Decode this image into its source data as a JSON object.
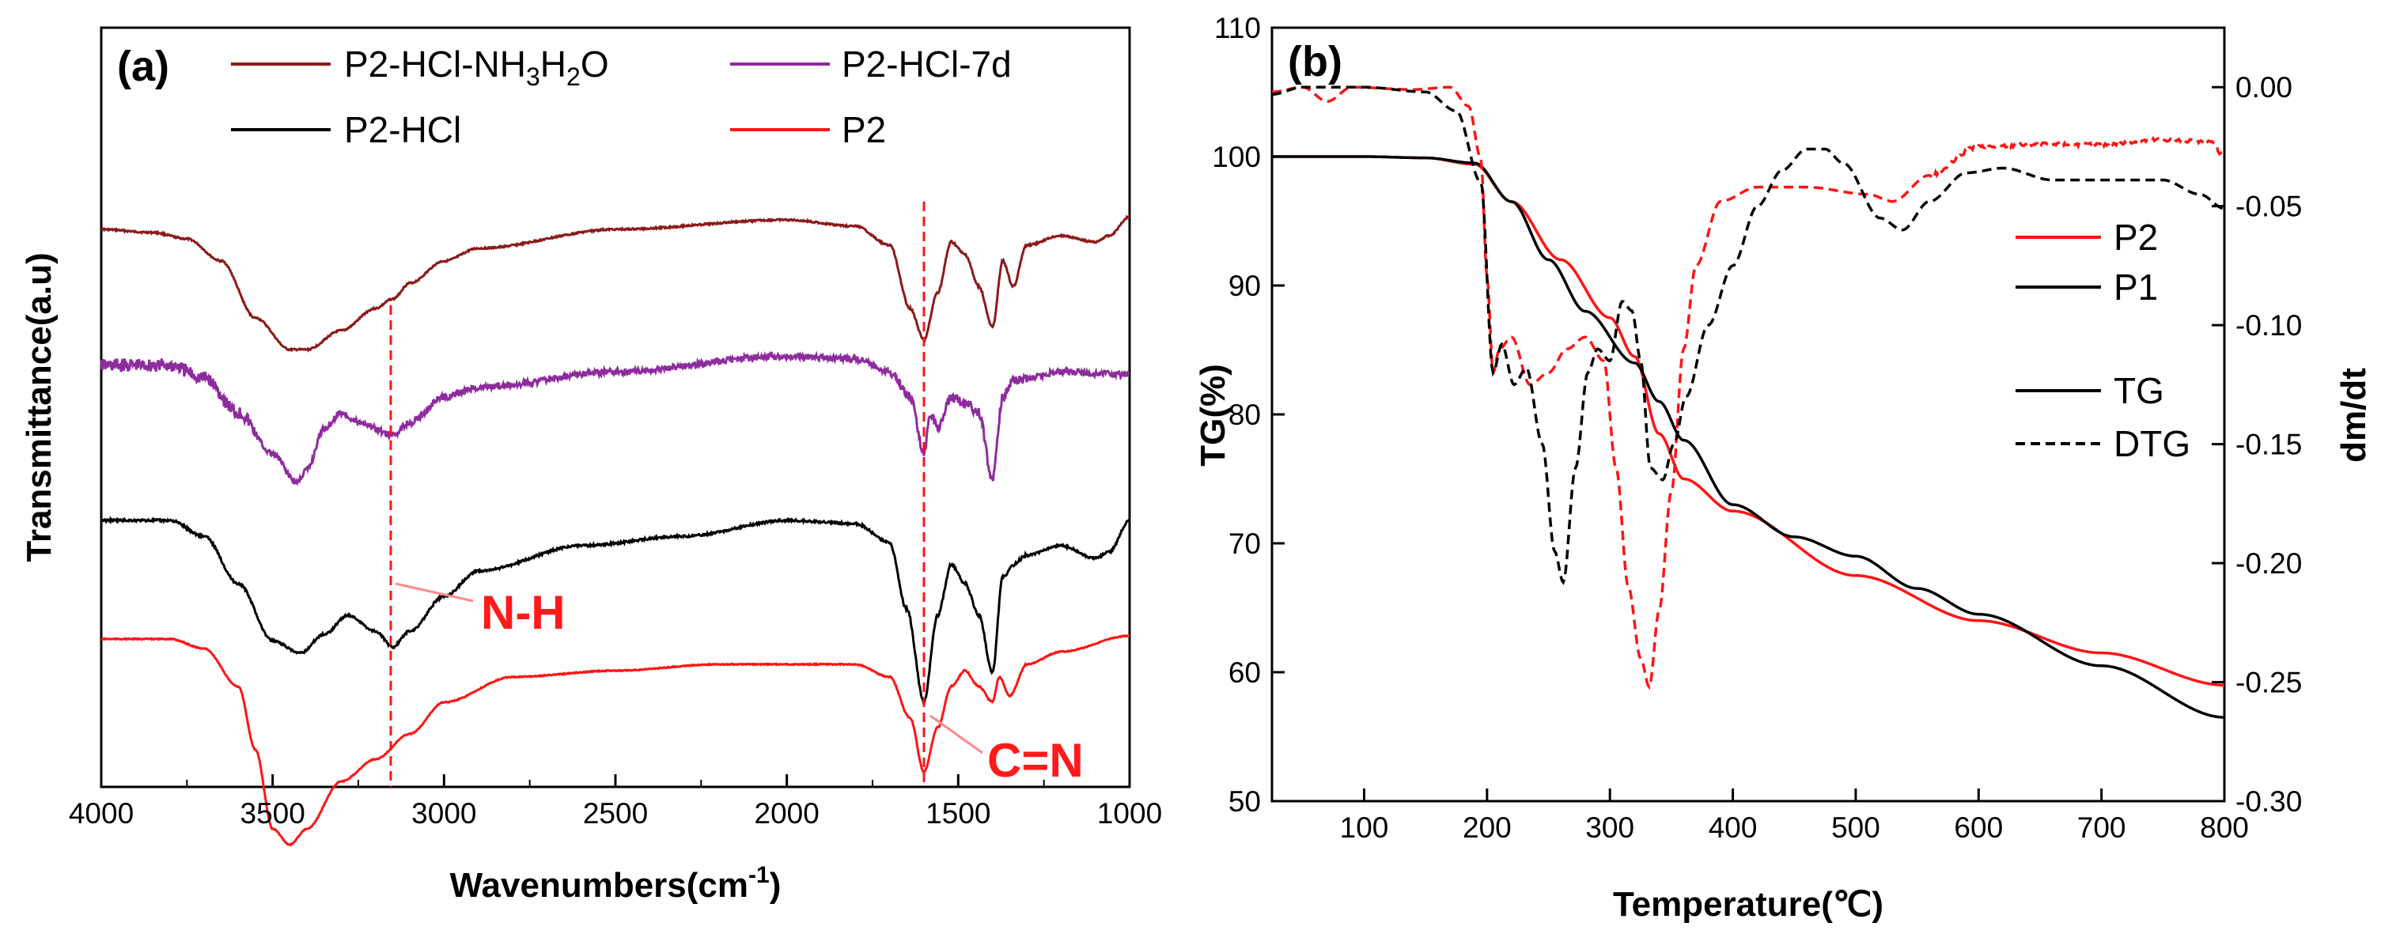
{
  "colors": {
    "dark_red": "#8b1a1a",
    "purple": "#8e2c9e",
    "black": "#000000",
    "red": "#ff1414"
  },
  "chart_data": [
    {
      "type": "line",
      "panel_label": "(a)",
      "title": "",
      "xlabel": "Wavenumbers(cm-1)",
      "xlabel_main": "Wavenumbers(cm",
      "xlabel_sup": "-1",
      "xlabel_close": ")",
      "ylabel": "Transmittance(a.u)",
      "xlim": [
        4000,
        1000
      ],
      "x_reversed": true,
      "x_ticks": [
        "4000",
        "3500",
        "3000",
        "2500",
        "2000",
        "1500",
        "1000"
      ],
      "x_tick_values": [
        4000,
        3500,
        3000,
        2500,
        2000,
        1500,
        1000
      ],
      "y_ticks": [],
      "legend": [
        "P2-HCl-NH3H2O",
        "P2-HCl-7d",
        "P2-HCl",
        "P2"
      ],
      "legend_location": "top",
      "legend_labels": {
        "p2_hcl_nh3h2o": {
          "a": "P2-HCl-NH",
          "s1": "3",
          "b": "H",
          "s2": "2",
          "c": "O"
        },
        "p2_hcl_7d": "P2-HCl-7d",
        "p2_hcl": "P2-HCl",
        "p2": "P2"
      },
      "annotations": [
        {
          "text": "N-H",
          "x": 3150
        },
        {
          "text": "C=N",
          "x": 1595
        }
      ],
      "series": [
        {
          "name": "P2-HCl-NH3H2O",
          "color": "#8b1a1a",
          "offset": 0,
          "noise": 0.25,
          "values": [
            [
              4000,
              0
            ],
            [
              3850,
              1
            ],
            [
              3750,
              3
            ],
            [
              3650,
              10
            ],
            [
              3550,
              28
            ],
            [
              3450,
              38
            ],
            [
              3400,
              38
            ],
            [
              3300,
              32
            ],
            [
              3200,
              25
            ],
            [
              3150,
              22
            ],
            [
              3100,
              17
            ],
            [
              3000,
              10
            ],
            [
              2900,
              6
            ],
            [
              2500,
              0
            ],
            [
              2000,
              -3
            ],
            [
              1800,
              -1
            ],
            [
              1700,
              5
            ],
            [
              1640,
              25
            ],
            [
              1600,
              35
            ],
            [
              1560,
              20
            ],
            [
              1520,
              4
            ],
            [
              1480,
              8
            ],
            [
              1440,
              18
            ],
            [
              1400,
              31
            ],
            [
              1370,
              10
            ],
            [
              1340,
              18
            ],
            [
              1300,
              5
            ],
            [
              1200,
              2
            ],
            [
              1100,
              4
            ],
            [
              1060,
              2
            ],
            [
              1000,
              -4
            ]
          ]
        },
        {
          "name": "P2-HCl-7d",
          "color": "#8e2c9e",
          "offset": 0,
          "noise": 1.0,
          "values": [
            [
              4000,
              0
            ],
            [
              3800,
              0
            ],
            [
              3700,
              4
            ],
            [
              3600,
              15
            ],
            [
              3500,
              28
            ],
            [
              3430,
              37
            ],
            [
              3400,
              33
            ],
            [
              3350,
              20
            ],
            [
              3300,
              15
            ],
            [
              3250,
              18
            ],
            [
              3150,
              22
            ],
            [
              3100,
              18
            ],
            [
              3000,
              10
            ],
            [
              2900,
              7
            ],
            [
              2500,
              2
            ],
            [
              2000,
              -3
            ],
            [
              1800,
              -2
            ],
            [
              1700,
              2
            ],
            [
              1640,
              10
            ],
            [
              1600,
              28
            ],
            [
              1580,
              15
            ],
            [
              1560,
              20
            ],
            [
              1520,
              10
            ],
            [
              1480,
              12
            ],
            [
              1440,
              15
            ],
            [
              1400,
              36
            ],
            [
              1370,
              10
            ],
            [
              1340,
              5
            ],
            [
              1200,
              2
            ],
            [
              1000,
              3
            ]
          ]
        },
        {
          "name": "P2-HCl",
          "color": "#000000",
          "offset": 0,
          "noise": 0.35,
          "values": [
            [
              4000,
              0
            ],
            [
              3800,
              0
            ],
            [
              3700,
              5
            ],
            [
              3600,
              20
            ],
            [
              3500,
              38
            ],
            [
              3420,
              42
            ],
            [
              3350,
              36
            ],
            [
              3280,
              30
            ],
            [
              3200,
              35
            ],
            [
              3150,
              40
            ],
            [
              3100,
              35
            ],
            [
              3000,
              24
            ],
            [
              2900,
              16
            ],
            [
              2600,
              8
            ],
            [
              2300,
              5
            ],
            [
              2000,
              0
            ],
            [
              1800,
              1
            ],
            [
              1700,
              7
            ],
            [
              1650,
              28
            ],
            [
              1600,
              57
            ],
            [
              1560,
              30
            ],
            [
              1520,
              14
            ],
            [
              1480,
              20
            ],
            [
              1440,
              30
            ],
            [
              1400,
              48
            ],
            [
              1370,
              18
            ],
            [
              1340,
              14
            ],
            [
              1300,
              11
            ],
            [
              1200,
              8
            ],
            [
              1100,
              12
            ],
            [
              1060,
              10
            ],
            [
              1000,
              0
            ]
          ]
        },
        {
          "name": "P2",
          "color": "#ff1414",
          "offset": 0,
          "noise": 0.15,
          "values": [
            [
              4000,
              0
            ],
            [
              3800,
              0
            ],
            [
              3700,
              3
            ],
            [
              3600,
              15
            ],
            [
              3550,
              35
            ],
            [
              3500,
              60
            ],
            [
              3450,
              65
            ],
            [
              3400,
              60
            ],
            [
              3300,
              45
            ],
            [
              3200,
              38
            ],
            [
              3100,
              30
            ],
            [
              3000,
              20
            ],
            [
              2800,
              12
            ],
            [
              2500,
              10
            ],
            [
              2200,
              8
            ],
            [
              2000,
              8
            ],
            [
              1800,
              8
            ],
            [
              1700,
              12
            ],
            [
              1640,
              25
            ],
            [
              1600,
              42
            ],
            [
              1560,
              28
            ],
            [
              1520,
              15
            ],
            [
              1480,
              10
            ],
            [
              1440,
              15
            ],
            [
              1400,
              20
            ],
            [
              1380,
              12
            ],
            [
              1350,
              18
            ],
            [
              1300,
              8
            ],
            [
              1200,
              4
            ],
            [
              1000,
              -1
            ]
          ]
        }
      ]
    },
    {
      "type": "line",
      "panel_label": "(b)",
      "title": "",
      "xlabel": "Temperature(℃)",
      "ylabel": "TG(%)",
      "y2label": "dm/dt",
      "xlim": [
        25,
        800
      ],
      "ylim": [
        50,
        110
      ],
      "y2lim": [
        -0.3,
        0.025
      ],
      "x_ticks": [
        "100",
        "200",
        "300",
        "400",
        "500",
        "600",
        "700",
        "800"
      ],
      "x_tick_values": [
        100,
        200,
        300,
        400,
        500,
        600,
        700,
        800
      ],
      "y_ticks": [
        "50",
        "60",
        "70",
        "80",
        "90",
        "100",
        "110"
      ],
      "y_tick_values": [
        50,
        60,
        70,
        80,
        90,
        100,
        110
      ],
      "y2_ticks": [
        "0.00",
        "-0.05",
        "-0.10",
        "-0.15",
        "-0.20",
        "-0.25",
        "-0.30"
      ],
      "y2_tick_values": [
        0,
        -0.05,
        -0.1,
        -0.15,
        -0.2,
        -0.25,
        -0.3
      ],
      "legend": [
        "P2",
        "P1",
        "TG",
        "DTG"
      ],
      "legend_location": "right",
      "legend_labels": {
        "p2": "P2",
        "p1": "P1",
        "tg": "TG",
        "dtg": "DTG"
      },
      "series": [
        {
          "name": "P2 TG",
          "axis": "left",
          "color": "#ff1414",
          "dashed": false,
          "noise": 0,
          "values": [
            [
              25,
              100
            ],
            [
              100,
              100
            ],
            [
              150,
              99.9
            ],
            [
              190,
              99.4
            ],
            [
              220,
              96.5
            ],
            [
              260,
              92
            ],
            [
              300,
              87.5
            ],
            [
              320,
              84.5
            ],
            [
              340,
              78.5
            ],
            [
              360,
              75
            ],
            [
              400,
              72.5
            ],
            [
              500,
              67.5
            ],
            [
              600,
              64
            ],
            [
              700,
              61.5
            ],
            [
              800,
              59
            ]
          ]
        },
        {
          "name": "P1 TG",
          "axis": "left",
          "color": "#000000",
          "dashed": false,
          "noise": 0,
          "values": [
            [
              25,
              100
            ],
            [
              100,
              100
            ],
            [
              150,
              99.9
            ],
            [
              190,
              99.5
            ],
            [
              220,
              96.5
            ],
            [
              250,
              92
            ],
            [
              280,
              88
            ],
            [
              320,
              84
            ],
            [
              340,
              81
            ],
            [
              360,
              78
            ],
            [
              400,
              73
            ],
            [
              450,
              70.5
            ],
            [
              500,
              69
            ],
            [
              550,
              66.5
            ],
            [
              600,
              64.5
            ],
            [
              700,
              60.5
            ],
            [
              800,
              56.5
            ]
          ]
        },
        {
          "name": "P2 DTG",
          "axis": "right",
          "color": "#ff1414",
          "dashed": true,
          "noise": 0.0008,
          "values": [
            [
              25,
              -0.002
            ],
            [
              50,
              0
            ],
            [
              70,
              -0.006
            ],
            [
              90,
              0
            ],
            [
              140,
              -0.001
            ],
            [
              170,
              0
            ],
            [
              185,
              -0.008
            ],
            [
              195,
              -0.03
            ],
            [
              200,
              -0.08
            ],
            [
              205,
              -0.12
            ],
            [
              210,
              -0.11
            ],
            [
              220,
              -0.105
            ],
            [
              235,
              -0.125
            ],
            [
              250,
              -0.12
            ],
            [
              265,
              -0.11
            ],
            [
              280,
              -0.105
            ],
            [
              295,
              -0.115
            ],
            [
              305,
              -0.16
            ],
            [
              315,
              -0.21
            ],
            [
              325,
              -0.24
            ],
            [
              332,
              -0.252
            ],
            [
              340,
              -0.22
            ],
            [
              350,
              -0.17
            ],
            [
              360,
              -0.11
            ],
            [
              370,
              -0.075
            ],
            [
              390,
              -0.048
            ],
            [
              420,
              -0.042
            ],
            [
              460,
              -0.042
            ],
            [
              510,
              -0.045
            ],
            [
              530,
              -0.048
            ],
            [
              560,
              -0.037
            ],
            [
              600,
              -0.025
            ],
            [
              650,
              -0.024
            ],
            [
              700,
              -0.024
            ],
            [
              750,
              -0.022
            ],
            [
              790,
              -0.023
            ],
            [
              800,
              -0.03
            ]
          ]
        },
        {
          "name": "P1 DTG",
          "axis": "right",
          "color": "#000000",
          "dashed": true,
          "noise": 0,
          "values": [
            [
              25,
              -0.003
            ],
            [
              50,
              0
            ],
            [
              100,
              0
            ],
            [
              150,
              -0.002
            ],
            [
              175,
              -0.01
            ],
            [
              195,
              -0.04
            ],
            [
              205,
              -0.12
            ],
            [
              212,
              -0.108
            ],
            [
              222,
              -0.125
            ],
            [
              232,
              -0.118
            ],
            [
              245,
              -0.15
            ],
            [
              255,
              -0.195
            ],
            [
              262,
              -0.208
            ],
            [
              272,
              -0.16
            ],
            [
              282,
              -0.12
            ],
            [
              290,
              -0.11
            ],
            [
              300,
              -0.115
            ],
            [
              310,
              -0.09
            ],
            [
              318,
              -0.094
            ],
            [
              325,
              -0.115
            ],
            [
              333,
              -0.16
            ],
            [
              343,
              -0.165
            ],
            [
              352,
              -0.15
            ],
            [
              362,
              -0.13
            ],
            [
              380,
              -0.1
            ],
            [
              400,
              -0.075
            ],
            [
              420,
              -0.05
            ],
            [
              440,
              -0.035
            ],
            [
              460,
              -0.026
            ],
            [
              475,
              -0.026
            ],
            [
              490,
              -0.032
            ],
            [
              520,
              -0.055
            ],
            [
              538,
              -0.06
            ],
            [
              560,
              -0.048
            ],
            [
              590,
              -0.036
            ],
            [
              620,
              -0.034
            ],
            [
              660,
              -0.039
            ],
            [
              700,
              -0.039
            ],
            [
              750,
              -0.039
            ],
            [
              780,
              -0.045
            ],
            [
              800,
              -0.051
            ]
          ]
        }
      ]
    }
  ]
}
